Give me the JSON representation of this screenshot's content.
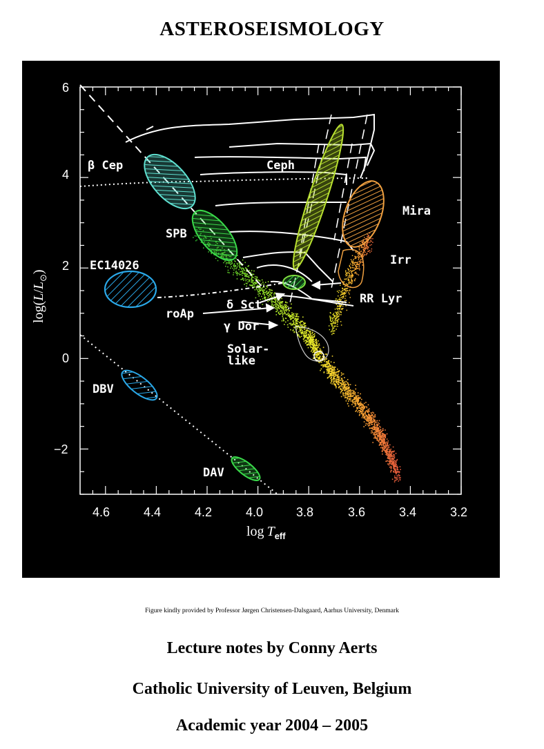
{
  "title": "ASTEROSEISMOLOGY",
  "credit": "Figure kindly provided by Professor Jørgen Christensen-Dalsgaard, Aarhus University, Denmark",
  "lecture": "Lecture notes by Conny Aerts",
  "university": "Catholic University of Leuven, Belgium",
  "year": "Academic year 2004 – 2005",
  "chart_data": {
    "type": "scatter",
    "title": "",
    "xlabel": "log T_eff",
    "ylabel": "log(L/L⊙)",
    "xlim": [
      4.7,
      3.2
    ],
    "ylim": [
      -3,
      6
    ],
    "x_ticks": [
      "4.6",
      "4.4",
      "4.2",
      "4.0",
      "3.8",
      "3.6",
      "3.4",
      "3.2"
    ],
    "y_ticks": [
      "6",
      "4",
      "2",
      "0",
      "−2"
    ],
    "grid": false,
    "background": "#000000",
    "regions": [
      {
        "label": "β Cep",
        "x": 4.35,
        "y": 3.8,
        "color": "#5fe0d0"
      },
      {
        "label": "SPB",
        "x": 4.13,
        "y": 2.65,
        "color": "#3ad84a"
      },
      {
        "label": "EC14026",
        "x": 4.5,
        "y": 1.45,
        "color": "#2aa8e8"
      },
      {
        "label": "DBV",
        "x": 4.43,
        "y": -0.55,
        "color": "#2aa8e8"
      },
      {
        "label": "DAV",
        "x": 4.05,
        "y": -2.4,
        "color": "#3ad84a"
      },
      {
        "label": "Ceph",
        "x": 3.72,
        "y": 3.25,
        "color": "#b8e030"
      },
      {
        "label": "Mira",
        "x": 3.58,
        "y": 3.3,
        "color": "#f0a040"
      },
      {
        "label": "Irr",
        "x": 3.63,
        "y": 2.2,
        "color": "#f0a040"
      },
      {
        "label": "RR Lyr",
        "x": 3.66,
        "y": 1.65,
        "color": "#f0c030"
      },
      {
        "label": "δ Sct",
        "x": 3.85,
        "y": 1.6,
        "color": "#80e040"
      },
      {
        "label": "roAp",
        "x": 3.92,
        "y": 1.0,
        "color": "#ffffff"
      },
      {
        "label": "γ Dor",
        "x": 3.86,
        "y": 0.7,
        "color": "#ffffff"
      },
      {
        "label": "Solar-like",
        "x": 3.76,
        "y": 0.0,
        "color": "#ffffff"
      }
    ]
  }
}
